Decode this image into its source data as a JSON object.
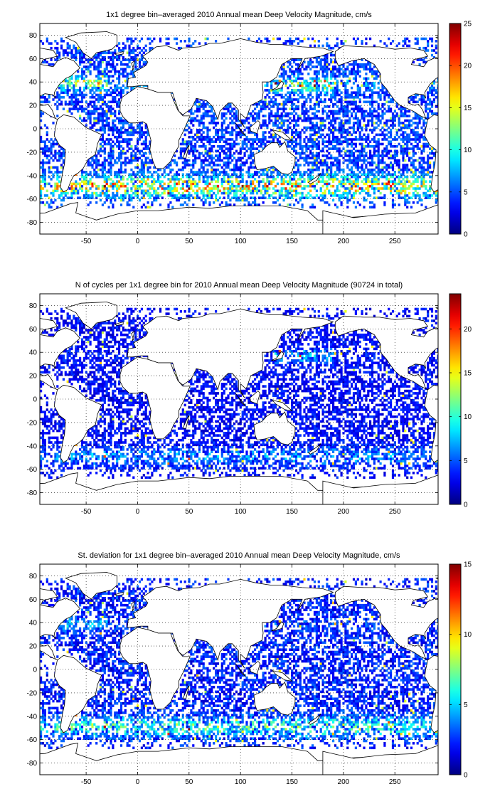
{
  "panels": [
    {
      "title": "1x1 degree bin–averaged 2010 Annual mean Deep Velocity Magnitude, cm/s",
      "colorbar": {
        "min": 0,
        "max": 25,
        "ticks": [
          "0",
          "5",
          "10",
          "15",
          "20",
          "25"
        ]
      },
      "field": "mean"
    },
    {
      "title": "N of cycles per 1x1 degree bin for 2010 Annual mean Deep Velocity Magnitude (90724 in total)",
      "colorbar": {
        "min": 0,
        "max": 24,
        "ticks": [
          "0",
          "5",
          "10",
          "15",
          "20"
        ]
      },
      "field": "count"
    },
    {
      "title": "St. deviation for 1x1 degree bin–averaged 2010 Annual mean Deep Velocity Magnitude, cm/s",
      "colorbar": {
        "min": 0,
        "max": 15,
        "ticks": [
          "0",
          "5",
          "10",
          "15"
        ]
      },
      "field": "std"
    }
  ],
  "axes": {
    "x_ticks": [
      "-50",
      "0",
      "50",
      "100",
      "150",
      "200",
      "250"
    ],
    "y_ticks": [
      "80",
      "60",
      "40",
      "20",
      "0",
      "-20",
      "-40",
      "-60",
      "-80"
    ],
    "xlim": [
      -95,
      292
    ],
    "ylim": [
      -90,
      90
    ],
    "grid": "dotted"
  },
  "colormap": "jet"
}
